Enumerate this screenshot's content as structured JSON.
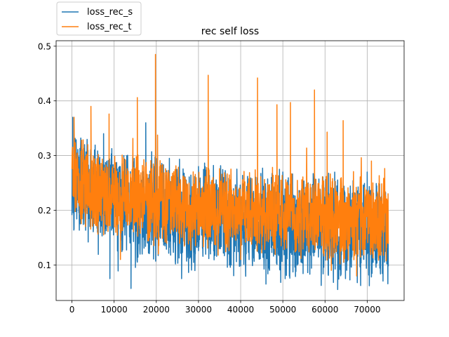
{
  "chart_data": {
    "type": "line",
    "title": "rec self loss",
    "xlabel": "",
    "ylabel": "",
    "xlim": [
      -3750,
      78750
    ],
    "ylim": [
      0.035,
      0.51
    ],
    "xticks": [
      0,
      10000,
      20000,
      30000,
      40000,
      50000,
      60000,
      70000
    ],
    "xtick_labels": [
      "0",
      "10000",
      "20000",
      "30000",
      "40000",
      "50000",
      "60000",
      "70000"
    ],
    "yticks": [
      0.1,
      0.2,
      0.3,
      0.4,
      0.5
    ],
    "ytick_labels": [
      "0.1",
      "0.2",
      "0.3",
      "0.4",
      "0.5"
    ],
    "grid": true,
    "legend": {
      "position": "above-top-left",
      "entries": [
        "loss_rec_s",
        "loss_rec_t"
      ]
    },
    "x": [
      0,
      2500,
      5000,
      7500,
      10000,
      12500,
      15000,
      17500,
      20000,
      22500,
      25000,
      27500,
      30000,
      32500,
      35000,
      37500,
      40000,
      42500,
      45000,
      47500,
      50000,
      52500,
      55000,
      57500,
      60000,
      62500,
      65000,
      67500,
      70000,
      72500,
      75000
    ],
    "series": [
      {
        "name": "loss_rec_s",
        "color": "#1f77b4",
        "values": [
          0.25,
          0.24,
          0.23,
          0.22,
          0.21,
          0.21,
          0.2,
          0.2,
          0.2,
          0.2,
          0.19,
          0.19,
          0.19,
          0.19,
          0.19,
          0.18,
          0.18,
          0.18,
          0.18,
          0.18,
          0.17,
          0.17,
          0.17,
          0.17,
          0.17,
          0.17,
          0.16,
          0.16,
          0.16,
          0.16,
          0.16
        ],
        "peaks": [
          [
            200,
            0.37
          ],
          [
            3000,
            0.32
          ],
          [
            7500,
            0.34
          ],
          [
            13000,
            0.3
          ],
          [
            17500,
            0.36
          ],
          [
            25000,
            0.26
          ],
          [
            30000,
            0.28
          ],
          [
            36000,
            0.26
          ],
          [
            42000,
            0.25
          ],
          [
            50000,
            0.27
          ],
          [
            56000,
            0.25
          ],
          [
            62000,
            0.24
          ],
          [
            70000,
            0.27
          ]
        ],
        "troughs": [
          [
            9000,
            0.075
          ],
          [
            14000,
            0.057
          ],
          [
            26000,
            0.075
          ],
          [
            46000,
            0.065
          ],
          [
            49500,
            0.068
          ],
          [
            63000,
            0.055
          ],
          [
            70500,
            0.062
          ]
        ]
      },
      {
        "name": "loss_rec_t",
        "color": "#ff7f0e",
        "values": [
          0.27,
          0.25,
          0.24,
          0.23,
          0.22,
          0.22,
          0.22,
          0.21,
          0.21,
          0.21,
          0.21,
          0.2,
          0.2,
          0.2,
          0.2,
          0.2,
          0.2,
          0.2,
          0.19,
          0.19,
          0.19,
          0.19,
          0.19,
          0.19,
          0.19,
          0.18,
          0.18,
          0.18,
          0.18,
          0.18,
          0.18
        ],
        "peaks": [
          [
            500,
            0.37
          ],
          [
            4500,
            0.39
          ],
          [
            8800,
            0.376
          ],
          [
            15500,
            0.406
          ],
          [
            19800,
            0.485
          ],
          [
            32300,
            0.447
          ],
          [
            44000,
            0.442
          ],
          [
            48600,
            0.393
          ],
          [
            51800,
            0.397
          ],
          [
            57500,
            0.42
          ],
          [
            60500,
            0.343
          ],
          [
            64300,
            0.364
          ],
          [
            71000,
            0.29
          ]
        ],
        "troughs": [
          [
            11500,
            0.11
          ],
          [
            20500,
            0.12
          ],
          [
            40000,
            0.11
          ],
          [
            61500,
            0.09
          ],
          [
            67500,
            0.08
          ]
        ]
      }
    ],
    "legend_colors": [
      "#1f77b4",
      "#ff7f0e"
    ]
  }
}
